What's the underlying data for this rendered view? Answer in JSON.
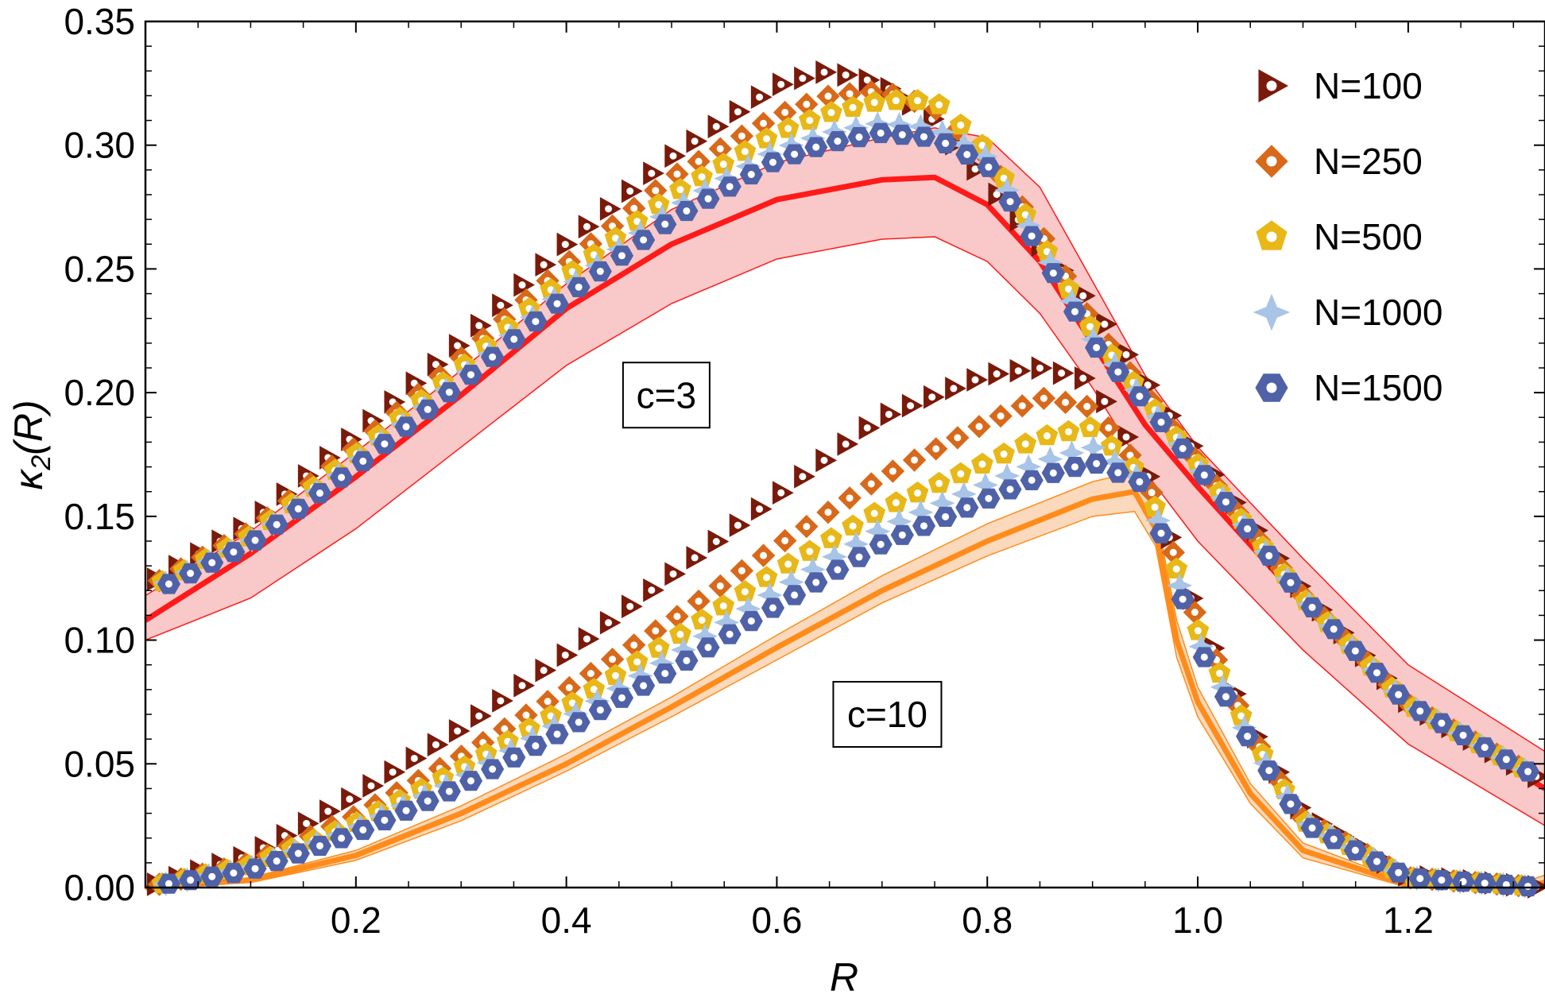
{
  "chart_data": {
    "type": "scatter",
    "title": "",
    "xlabel": "R",
    "ylabel": "κ2(R)",
    "ylabel_main": "κ",
    "ylabel_sub": "2",
    "ylabel_rest": "(R)",
    "xlim": [
      0.0,
      1.33
    ],
    "ylim": [
      0.0,
      0.35
    ],
    "x_ticks": [
      0.2,
      0.4,
      0.6,
      0.8,
      1.0,
      1.2
    ],
    "x_tick_labels": [
      "0.2",
      "0.4",
      "0.6",
      "0.8",
      "1.0",
      "1.2"
    ],
    "y_ticks": [
      0.0,
      0.05,
      0.1,
      0.15,
      0.2,
      0.25,
      0.3,
      0.35
    ],
    "y_tick_labels": [
      "0.00",
      "0.05",
      "0.10",
      "0.15",
      "0.20",
      "0.25",
      "0.30",
      "0.35"
    ],
    "grid": false,
    "legend_position": "top-right",
    "series_c3": [
      {
        "name": "N=100",
        "x": [
          0.0,
          0.1,
          0.2,
          0.3,
          0.4,
          0.5,
          0.6,
          0.65,
          0.7,
          0.75,
          0.8,
          0.85,
          0.9,
          0.95,
          1.0,
          1.1,
          1.2,
          1.33
        ],
        "y": [
          0.122,
          0.147,
          0.183,
          0.22,
          0.26,
          0.295,
          0.324,
          0.33,
          0.325,
          0.31,
          0.285,
          0.26,
          0.235,
          0.205,
          0.175,
          0.12,
          0.075,
          0.043
        ]
      },
      {
        "name": "N=250",
        "x": [
          0.0,
          0.1,
          0.2,
          0.3,
          0.4,
          0.5,
          0.6,
          0.65,
          0.7,
          0.75,
          0.8,
          0.85,
          0.9,
          0.95,
          1.0,
          1.1,
          1.2,
          1.33
        ],
        "y": [
          0.121,
          0.144,
          0.178,
          0.214,
          0.252,
          0.287,
          0.312,
          0.32,
          0.322,
          0.315,
          0.295,
          0.265,
          0.228,
          0.2,
          0.172,
          0.118,
          0.074,
          0.043
        ]
      },
      {
        "name": "N=500",
        "x": [
          0.0,
          0.1,
          0.2,
          0.3,
          0.4,
          0.5,
          0.6,
          0.65,
          0.7,
          0.75,
          0.8,
          0.85,
          0.9,
          0.95,
          1.0,
          1.1,
          1.2,
          1.33
        ],
        "y": [
          0.12,
          0.142,
          0.175,
          0.21,
          0.247,
          0.28,
          0.305,
          0.313,
          0.318,
          0.318,
          0.298,
          0.262,
          0.225,
          0.198,
          0.171,
          0.117,
          0.074,
          0.043
        ]
      },
      {
        "name": "N=1000",
        "x": [
          0.0,
          0.1,
          0.2,
          0.3,
          0.4,
          0.5,
          0.6,
          0.65,
          0.7,
          0.75,
          0.8,
          0.85,
          0.9,
          0.95,
          1.0,
          1.1,
          1.2,
          1.33
        ],
        "y": [
          0.119,
          0.14,
          0.172,
          0.206,
          0.242,
          0.274,
          0.298,
          0.305,
          0.309,
          0.307,
          0.295,
          0.26,
          0.222,
          0.197,
          0.17,
          0.117,
          0.074,
          0.043
        ]
      },
      {
        "name": "N=1500",
        "x": [
          0.0,
          0.1,
          0.2,
          0.3,
          0.4,
          0.5,
          0.6,
          0.65,
          0.7,
          0.75,
          0.8,
          0.85,
          0.9,
          0.95,
          1.0,
          1.1,
          1.2,
          1.33
        ],
        "y": [
          0.118,
          0.139,
          0.17,
          0.204,
          0.239,
          0.27,
          0.294,
          0.301,
          0.305,
          0.303,
          0.292,
          0.258,
          0.22,
          0.196,
          0.17,
          0.117,
          0.074,
          0.043
        ]
      }
    ],
    "series_c10": [
      {
        "name": "N=100",
        "x": [
          0.0,
          0.1,
          0.2,
          0.3,
          0.4,
          0.5,
          0.6,
          0.7,
          0.8,
          0.85,
          0.9,
          0.95,
          1.0,
          1.05,
          1.1,
          1.2,
          1.33
        ],
        "y": [
          0.0,
          0.013,
          0.037,
          0.064,
          0.094,
          0.126,
          0.158,
          0.19,
          0.207,
          0.21,
          0.205,
          0.17,
          0.11,
          0.065,
          0.03,
          0.005,
          0.0
        ]
      },
      {
        "name": "N=250",
        "x": [
          0.0,
          0.1,
          0.2,
          0.3,
          0.4,
          0.5,
          0.6,
          0.7,
          0.8,
          0.85,
          0.9,
          0.95,
          1.0,
          1.05,
          1.1,
          1.2,
          1.33
        ],
        "y": [
          0.0,
          0.01,
          0.029,
          0.053,
          0.08,
          0.108,
          0.138,
          0.166,
          0.188,
          0.198,
          0.194,
          0.167,
          0.108,
          0.063,
          0.028,
          0.004,
          0.0
        ]
      },
      {
        "name": "N=500",
        "x": [
          0.0,
          0.1,
          0.2,
          0.3,
          0.4,
          0.5,
          0.6,
          0.7,
          0.8,
          0.85,
          0.9,
          0.95,
          1.0,
          1.05,
          1.1,
          1.2,
          1.33
        ],
        "y": [
          0.0,
          0.009,
          0.026,
          0.048,
          0.073,
          0.1,
          0.128,
          0.153,
          0.172,
          0.182,
          0.186,
          0.165,
          0.104,
          0.062,
          0.027,
          0.004,
          0.0
        ]
      },
      {
        "name": "N=1000",
        "x": [
          0.0,
          0.1,
          0.2,
          0.3,
          0.4,
          0.5,
          0.6,
          0.7,
          0.8,
          0.85,
          0.9,
          0.95,
          1.0,
          1.05,
          1.1,
          1.2,
          1.33
        ],
        "y": [
          0.0,
          0.008,
          0.024,
          0.044,
          0.068,
          0.093,
          0.12,
          0.145,
          0.163,
          0.172,
          0.178,
          0.164,
          0.1,
          0.06,
          0.027,
          0.004,
          0.0
        ]
      },
      {
        "name": "N=1500",
        "x": [
          0.0,
          0.1,
          0.2,
          0.3,
          0.4,
          0.5,
          0.6,
          0.7,
          0.8,
          0.85,
          0.9,
          0.95,
          1.0,
          1.05,
          1.1,
          1.2,
          1.33
        ],
        "y": [
          0.0,
          0.007,
          0.022,
          0.041,
          0.064,
          0.088,
          0.114,
          0.139,
          0.157,
          0.166,
          0.172,
          0.163,
          0.098,
          0.059,
          0.026,
          0.004,
          0.0
        ]
      }
    ],
    "band_c3": {
      "x": [
        0.0,
        0.1,
        0.2,
        0.3,
        0.4,
        0.5,
        0.6,
        0.7,
        0.75,
        0.8,
        0.85,
        0.9,
        0.95,
        1.0,
        1.1,
        1.2,
        1.33
      ],
      "center": [
        0.108,
        0.135,
        0.166,
        0.199,
        0.234,
        0.26,
        0.278,
        0.286,
        0.287,
        0.276,
        0.253,
        0.22,
        0.187,
        0.162,
        0.115,
        0.073,
        0.04
      ],
      "upper": [
        0.118,
        0.144,
        0.176,
        0.209,
        0.244,
        0.274,
        0.293,
        0.303,
        0.307,
        0.303,
        0.283,
        0.245,
        0.207,
        0.178,
        0.133,
        0.09,
        0.055
      ],
      "lower": [
        0.1,
        0.117,
        0.145,
        0.178,
        0.211,
        0.236,
        0.254,
        0.262,
        0.263,
        0.253,
        0.232,
        0.202,
        0.168,
        0.14,
        0.096,
        0.058,
        0.025
      ]
    },
    "band_c10": {
      "x": [
        0.0,
        0.1,
        0.2,
        0.3,
        0.4,
        0.5,
        0.6,
        0.7,
        0.8,
        0.9,
        0.94,
        0.96,
        0.98,
        1.0,
        1.05,
        1.1,
        1.2,
        1.3,
        1.33
      ],
      "center": [
        0.0,
        0.003,
        0.013,
        0.03,
        0.05,
        0.073,
        0.097,
        0.12,
        0.14,
        0.157,
        0.16,
        0.145,
        0.1,
        0.075,
        0.038,
        0.015,
        0.001,
        0.0,
        0.002
      ],
      "upper": [
        0.0,
        0.004,
        0.015,
        0.033,
        0.054,
        0.077,
        0.102,
        0.126,
        0.147,
        0.164,
        0.168,
        0.152,
        0.108,
        0.081,
        0.042,
        0.018,
        0.002,
        0.001,
        0.005
      ],
      "lower": [
        0.0,
        0.002,
        0.011,
        0.027,
        0.047,
        0.069,
        0.092,
        0.115,
        0.134,
        0.15,
        0.152,
        0.138,
        0.093,
        0.069,
        0.034,
        0.012,
        0.0,
        0.0,
        0.0
      ]
    },
    "annotations": [
      {
        "text": "c=3",
        "x": 0.495,
        "y": 0.199
      },
      {
        "text": "c=10",
        "x": 0.705,
        "y": 0.07
      }
    ],
    "legend": [
      {
        "label": "N=100",
        "marker": "triangle-right",
        "color": "#7a1a0a"
      },
      {
        "label": "N=250",
        "marker": "diamond",
        "color": "#d8691a"
      },
      {
        "label": "N=500",
        "marker": "pentagon",
        "color": "#e8b818"
      },
      {
        "label": "N=1000",
        "marker": "star",
        "color": "#a8c4e6"
      },
      {
        "label": "N=1500",
        "marker": "hexagon",
        "color": "#4f62a8"
      }
    ],
    "colors": {
      "c3_line": "#ff1a1a",
      "c3_band": "#f9c9c9",
      "c10_line": "#ff8c1a",
      "c10_band": "#fbd9bc"
    }
  }
}
